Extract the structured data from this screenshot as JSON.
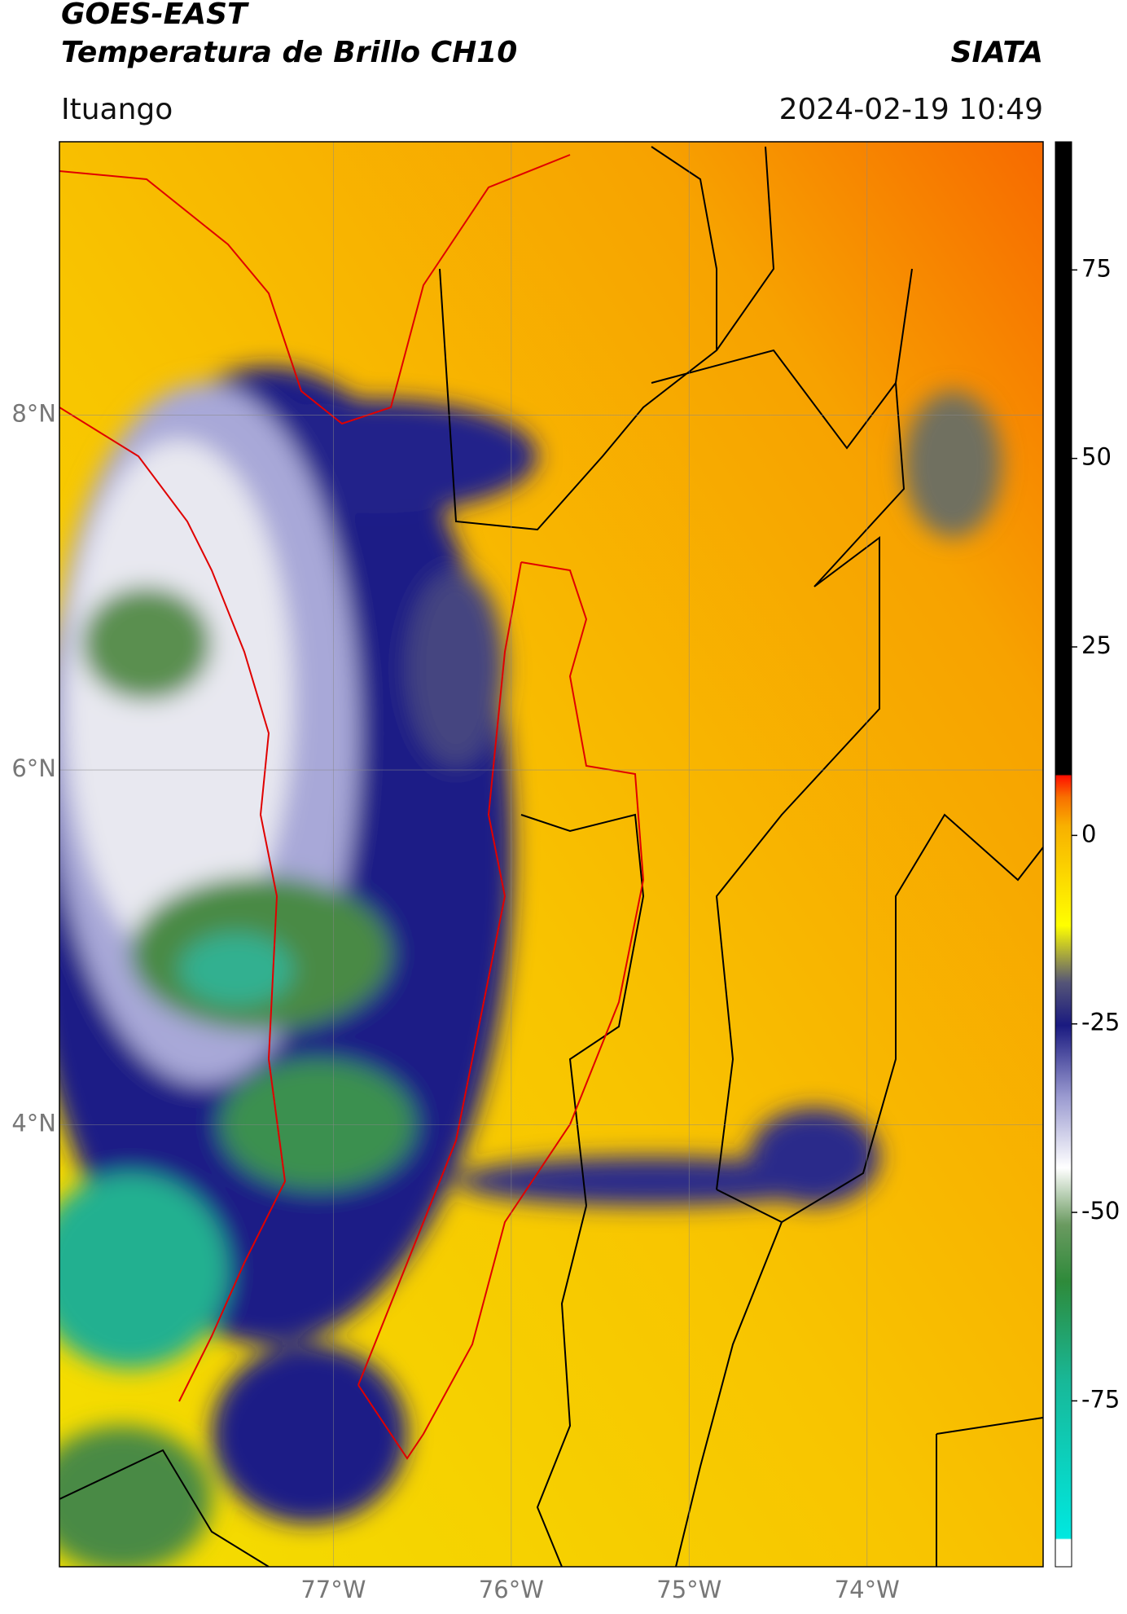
{
  "header": {
    "title": "GOES-EAST",
    "subtitle": "Temperatura de Brillo CH10",
    "brand": "SIATA",
    "location": "Ituango",
    "timestamp": "2024-02-19 10:49"
  },
  "map": {
    "xlim": [
      -78.54,
      -73.01
    ],
    "ylim": [
      1.51,
      9.54
    ],
    "xticks": [
      {
        "value": -77,
        "label": "77°W"
      },
      {
        "value": -76,
        "label": "76°W"
      },
      {
        "value": -75,
        "label": "75°W"
      },
      {
        "value": -74,
        "label": "74°W"
      }
    ],
    "yticks": [
      {
        "value": 8,
        "label": "8°N"
      },
      {
        "value": 6,
        "label": "6°N"
      },
      {
        "value": 4,
        "label": "4°N"
      }
    ],
    "grid": true
  },
  "colorbar": {
    "lim": [
      -97,
      92
    ],
    "ticks": [
      75,
      50,
      25,
      0,
      -25,
      -50,
      -75
    ]
  }
}
